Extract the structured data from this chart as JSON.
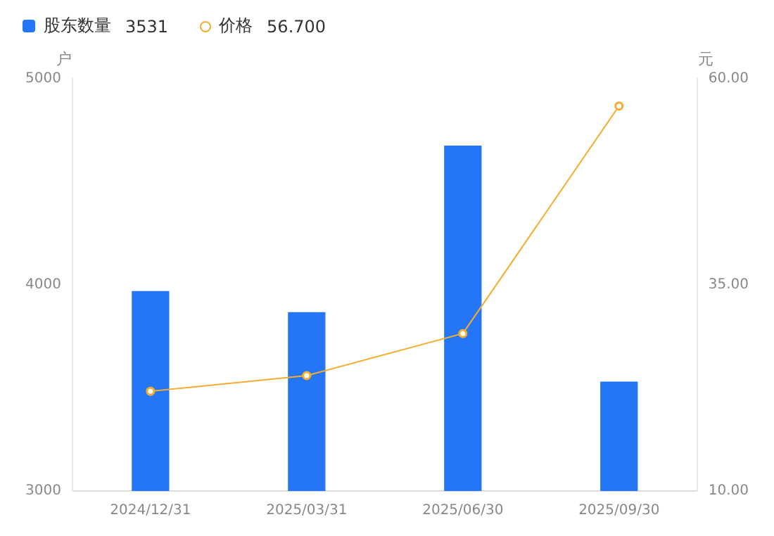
{
  "chart_data": {
    "type": "bar",
    "ylabel": "户",
    "y2label": "元",
    "categories": [
      "2024/12/31",
      "2025/03/31",
      "2025/06/30",
      "2025/09/30"
    ],
    "series": [
      {
        "name": "股东数量",
        "color": "#2476f6",
        "values": [
          3970,
          3868,
          4676,
          3531
        ]
      },
      {
        "name": "价格",
        "type": "line",
        "axis": "y2",
        "color": "#f5ad2f",
        "values": [
          22.1,
          24.0,
          29.1,
          56.7
        ]
      }
    ],
    "annotations": [
      "3531",
      "56.700"
    ],
    "ylim": [
      3000,
      5000
    ],
    "yticks": [
      3000,
      4000,
      5000
    ],
    "y2lim": [
      10,
      60
    ],
    "y2ticks": [
      {
        "value": 10,
        "label": "10.00"
      },
      {
        "value": 35,
        "label": "35.00"
      },
      {
        "value": 60,
        "label": "60.00"
      }
    ],
    "grid": false,
    "legend": "top left",
    "marker": "circle",
    "line_style": "solid"
  }
}
